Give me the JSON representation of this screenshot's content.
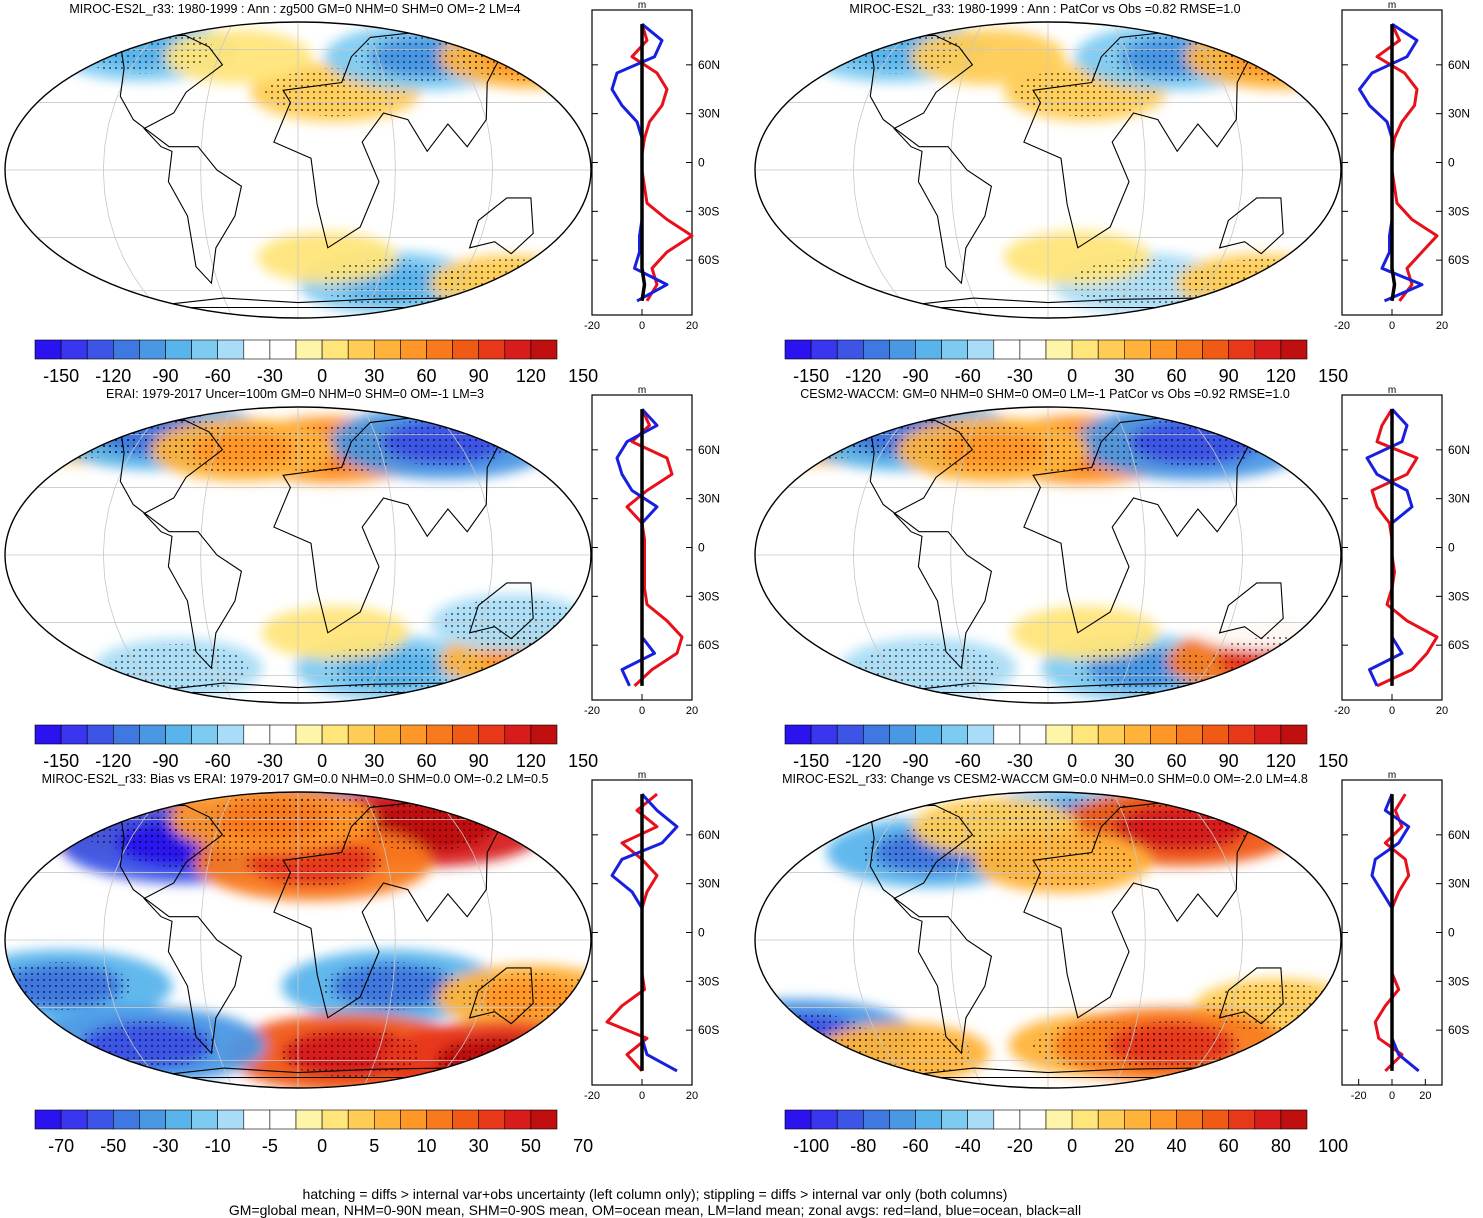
{
  "figure": {
    "caption_line1": "hatching = diffs > internal var+obs uncertainty (left column only); stippling = diffs > internal var only (both columns)",
    "caption_line2": "GM=global mean, NHM=0-90N mean, SHM=0-90S mean, OM=ocean mean, LM=land mean; zonal avgs: red=land, blue=ocean, black=all",
    "colors": {
      "land": "#e8101a",
      "ocean": "#1820e0",
      "all": "#000000",
      "grid": "#c8c8c8",
      "stipple": "#000000"
    },
    "zonal_unit": "m",
    "lat_ticks": [
      "60N",
      "30N",
      "0",
      "30S",
      "60S"
    ],
    "lat_tick_values": [
      60,
      30,
      0,
      -30,
      -60
    ]
  },
  "chart_data": [
    {
      "id": "p1",
      "type": "map",
      "title": "MIROC-ES2L_r33: 1980-1999 : Ann : zg500 GM=0 NHM=0 SHM=0 OM=-2 LM=4",
      "colorbar_labels": [
        "-150",
        "-120",
        "-90",
        "-60",
        "-30",
        "0",
        "30",
        "60",
        "90",
        "120",
        "150"
      ],
      "colorbar_colors": [
        "#2a13ee",
        "#3a36f0",
        "#3c55e6",
        "#3f78e0",
        "#4a97e4",
        "#5ab4ec",
        "#7ecbf2",
        "#a9dcf6",
        "#ffffff",
        "#ffffff",
        "#fff5a8",
        "#ffe57a",
        "#ffcc55",
        "#ffb33a",
        "#ff9628",
        "#f97a1c",
        "#f05a14",
        "#e8381a",
        "#d81c1c",
        "#c00f0f"
      ],
      "scale_max": 150,
      "anomalies": [
        {
          "lon": 25,
          "lat": 35,
          "value": 40
        },
        {
          "lon": 95,
          "lat": 55,
          "value": -60
        },
        {
          "lon": 175,
          "lat": 55,
          "value": 50
        },
        {
          "lon": -120,
          "lat": 60,
          "value": -50
        },
        {
          "lon": -45,
          "lat": 55,
          "value": 25
        },
        {
          "lon": 70,
          "lat": -55,
          "value": -50
        },
        {
          "lon": 160,
          "lat": -55,
          "value": 35
        },
        {
          "lon": -90,
          "lat": -50,
          "value": -30
        },
        {
          "lon": 20,
          "lat": -40,
          "value": 20
        }
      ],
      "zonal": {
        "xlim": [
          -20,
          20
        ],
        "xticks": [
          -20,
          0,
          20
        ],
        "lat": [
          -85,
          -75,
          -65,
          -55,
          -45,
          -35,
          -25,
          -15,
          -5,
          5,
          15,
          25,
          35,
          45,
          55,
          65,
          75,
          85
        ],
        "land": [
          2,
          6,
          4,
          10,
          20,
          10,
          2,
          1,
          0,
          0,
          1,
          3,
          8,
          10,
          6,
          -4,
          2,
          0
        ],
        "ocean": [
          -2,
          10,
          -3,
          -1,
          -1,
          0,
          0,
          0,
          0,
          0,
          0,
          -2,
          -8,
          -12,
          -10,
          5,
          8,
          0
        ],
        "all": [
          0,
          1,
          0,
          0,
          0,
          0,
          0,
          0,
          0,
          0,
          0,
          0,
          0,
          0,
          0,
          0,
          0,
          0
        ]
      }
    },
    {
      "id": "p2",
      "type": "map",
      "title": "MIROC-ES2L_r33: 1980-1999 : Ann : PatCor vs Obs =0.82 RMSE=1.0",
      "colorbar_labels": [
        "-150",
        "-120",
        "-90",
        "-60",
        "-30",
        "0",
        "30",
        "60",
        "90",
        "120",
        "150"
      ],
      "colorbar_colors": [
        "#2a13ee",
        "#3a36f0",
        "#3c55e6",
        "#3f78e0",
        "#4a97e4",
        "#5ab4ec",
        "#7ecbf2",
        "#a9dcf6",
        "#ffffff",
        "#ffffff",
        "#fff5a8",
        "#ffe57a",
        "#ffcc55",
        "#ffb33a",
        "#ff9628",
        "#f97a1c",
        "#f05a14",
        "#e8381a",
        "#d81c1c",
        "#c00f0f"
      ],
      "scale_max": 150,
      "anomalies": [
        {
          "lon": 25,
          "lat": 35,
          "value": 35
        },
        {
          "lon": 95,
          "lat": 55,
          "value": -60
        },
        {
          "lon": 175,
          "lat": 55,
          "value": 55
        },
        {
          "lon": -120,
          "lat": 60,
          "value": -55
        },
        {
          "lon": -45,
          "lat": 55,
          "value": 30
        },
        {
          "lon": 70,
          "lat": -55,
          "value": -45
        },
        {
          "lon": 160,
          "lat": -55,
          "value": 40
        },
        {
          "lon": -90,
          "lat": -50,
          "value": -30
        },
        {
          "lon": 20,
          "lat": -40,
          "value": 25
        }
      ],
      "zonal": {
        "xlim": [
          -20,
          20
        ],
        "xticks": [
          -20,
          0,
          20
        ],
        "lat": [
          -85,
          -75,
          -65,
          -55,
          -45,
          -35,
          -25,
          -15,
          -5,
          5,
          15,
          25,
          35,
          45,
          55,
          65,
          75,
          85
        ],
        "land": [
          3,
          8,
          6,
          12,
          18,
          8,
          2,
          1,
          0,
          0,
          1,
          4,
          9,
          10,
          5,
          -6,
          3,
          0
        ],
        "ocean": [
          -3,
          12,
          -4,
          -1,
          -1,
          0,
          0,
          0,
          0,
          0,
          0,
          -2,
          -9,
          -13,
          -8,
          6,
          10,
          0
        ],
        "all": [
          0,
          1,
          0,
          0,
          0,
          0,
          0,
          0,
          0,
          0,
          0,
          0,
          0,
          0,
          0,
          0,
          0,
          0
        ]
      }
    },
    {
      "id": "p3",
      "type": "map",
      "title": "ERAI: 1979-2017 Uncer=100m GM=0 NHM=0 SHM=0 OM=-1 LM=3",
      "colorbar_labels": [
        "-150",
        "-120",
        "-90",
        "-60",
        "-30",
        "0",
        "30",
        "60",
        "90",
        "120",
        "150"
      ],
      "colorbar_colors": [
        "#2a13ee",
        "#3a36f0",
        "#3c55e6",
        "#3f78e0",
        "#4a97e4",
        "#5ab4ec",
        "#7ecbf2",
        "#a9dcf6",
        "#ffffff",
        "#ffffff",
        "#fff5a8",
        "#ffe57a",
        "#ffcc55",
        "#ffb33a",
        "#ff9628",
        "#f97a1c",
        "#f05a14",
        "#e8381a",
        "#d81c1c",
        "#c00f0f"
      ],
      "scale_max": 150,
      "anomalies": [
        {
          "lon": 25,
          "lat": 50,
          "value": 60
        },
        {
          "lon": 110,
          "lat": 55,
          "value": -80
        },
        {
          "lon": -170,
          "lat": 60,
          "value": 40
        },
        {
          "lon": -110,
          "lat": 60,
          "value": -70
        },
        {
          "lon": -40,
          "lat": 50,
          "value": 50
        },
        {
          "lon": 70,
          "lat": -55,
          "value": -55
        },
        {
          "lon": 170,
          "lat": -50,
          "value": 50
        },
        {
          "lon": -90,
          "lat": -55,
          "value": -40
        },
        {
          "lon": 25,
          "lat": -35,
          "value": 25
        },
        {
          "lon": 140,
          "lat": -30,
          "value": -35
        }
      ],
      "zonal": {
        "xlim": [
          -20,
          20
        ],
        "xticks": [
          -20,
          0,
          20
        ],
        "lat": [
          -85,
          -75,
          -65,
          -55,
          -45,
          -35,
          -25,
          -15,
          -5,
          5,
          15,
          25,
          35,
          45,
          55,
          65,
          75,
          85
        ],
        "land": [
          -3,
          4,
          14,
          16,
          10,
          2,
          1,
          1,
          1,
          1,
          0,
          -6,
          2,
          12,
          10,
          -4,
          3,
          0
        ],
        "ocean": [
          -5,
          -8,
          5,
          0,
          0,
          0,
          0,
          0,
          0,
          0,
          0,
          6,
          -4,
          -8,
          -10,
          -6,
          6,
          0
        ],
        "all": [
          0,
          0,
          0,
          0,
          0,
          0,
          0,
          0,
          0,
          0,
          0,
          0,
          0,
          0,
          0,
          0,
          0,
          0
        ]
      }
    },
    {
      "id": "p4",
      "type": "map",
      "title": "CESM2-WACCM: GM=0 NHM=0 SHM=0 OM=0 LM=-1 PatCor vs Obs =0.92 RMSE=1.0",
      "colorbar_labels": [
        "-150",
        "-120",
        "-90",
        "-60",
        "-30",
        "0",
        "30",
        "60",
        "90",
        "120",
        "150"
      ],
      "colorbar_colors": [
        "#2a13ee",
        "#3a36f0",
        "#3c55e6",
        "#3f78e0",
        "#4a97e4",
        "#5ab4ec",
        "#7ecbf2",
        "#a9dcf6",
        "#ffffff",
        "#ffffff",
        "#fff5a8",
        "#ffe57a",
        "#ffcc55",
        "#ffb33a",
        "#ff9628",
        "#f97a1c",
        "#f05a14",
        "#e8381a",
        "#d81c1c",
        "#c00f0f"
      ],
      "scale_max": 150,
      "anomalies": [
        {
          "lon": 25,
          "lat": 50,
          "value": 65
        },
        {
          "lon": 110,
          "lat": 55,
          "value": -85
        },
        {
          "lon": -170,
          "lat": 60,
          "value": 45
        },
        {
          "lon": -110,
          "lat": 60,
          "value": -75
        },
        {
          "lon": -40,
          "lat": 50,
          "value": 55
        },
        {
          "lon": 70,
          "lat": -55,
          "value": -60
        },
        {
          "lon": 170,
          "lat": -50,
          "value": 80
        },
        {
          "lon": -90,
          "lat": -55,
          "value": -45
        },
        {
          "lon": 25,
          "lat": -35,
          "value": 25
        },
        {
          "lon": 140,
          "lat": -30,
          "value": -30
        }
      ],
      "zonal": {
        "xlim": [
          -20,
          20
        ],
        "xticks": [
          -20,
          0,
          20
        ],
        "lat": [
          -85,
          -75,
          -65,
          -55,
          -45,
          -35,
          -25,
          -15,
          -5,
          5,
          15,
          25,
          35,
          45,
          55,
          65,
          75,
          85
        ],
        "land": [
          -6,
          8,
          14,
          18,
          6,
          -2,
          0,
          1,
          0,
          0,
          -1,
          -6,
          -8,
          6,
          10,
          -6,
          -4,
          0
        ],
        "ocean": [
          -6,
          -9,
          4,
          0,
          0,
          0,
          0,
          0,
          0,
          0,
          0,
          8,
          6,
          -6,
          -10,
          4,
          6,
          0
        ],
        "all": [
          0,
          0,
          0,
          0,
          0,
          0,
          0,
          0,
          0,
          0,
          0,
          0,
          0,
          0,
          0,
          0,
          0,
          0
        ]
      }
    },
    {
      "id": "p5",
      "type": "map",
      "title": "MIROC-ES2L_r33: Bias vs ERAI: 1979-2017 GM=0.0 NHM=0.0 SHM=0.0 OM=-0.2 LM=0.5",
      "colorbar_labels": [
        "-70",
        "-50",
        "-30",
        "-10",
        "-5",
        "0",
        "5",
        "10",
        "30",
        "50",
        "70"
      ],
      "colorbar_colors": [
        "#2a13ee",
        "#3a36f0",
        "#3c55e6",
        "#3f78e0",
        "#4a97e4",
        "#5ab4ec",
        "#7ecbf2",
        "#a9dcf6",
        "#ffffff",
        "#ffffff",
        "#fff5a8",
        "#ffe57a",
        "#ffcc55",
        "#ffb33a",
        "#ff9628",
        "#f97a1c",
        "#f05a14",
        "#e8381a",
        "#d81c1c",
        "#c00f0f"
      ],
      "scale_max": 70,
      "anomalies": [
        {
          "lon": 20,
          "lat": 60,
          "value": -45
        },
        {
          "lon": 95,
          "lat": 55,
          "value": 60
        },
        {
          "lon": -140,
          "lat": 60,
          "value": 35
        },
        {
          "lon": -80,
          "lat": 45,
          "value": -55
        },
        {
          "lon": 10,
          "lat": 35,
          "value": 40
        },
        {
          "lon": -20,
          "lat": 60,
          "value": 30
        },
        {
          "lon": 60,
          "lat": -20,
          "value": -35
        },
        {
          "lon": 150,
          "lat": -25,
          "value": 25
        },
        {
          "lon": -150,
          "lat": -20,
          "value": -35
        },
        {
          "lon": 40,
          "lat": -55,
          "value": 45
        },
        {
          "lon": 160,
          "lat": -60,
          "value": 50
        },
        {
          "lon": -110,
          "lat": -50,
          "value": -40
        }
      ],
      "zonal": {
        "xlim": [
          -20,
          20
        ],
        "xticks": [
          -20,
          0,
          20
        ],
        "lat": [
          -85,
          -75,
          -65,
          -55,
          -45,
          -35,
          -25,
          -15,
          -5,
          5,
          15,
          25,
          35,
          45,
          55,
          65,
          75,
          85
        ],
        "land": [
          0,
          -6,
          2,
          -14,
          -8,
          1,
          0,
          0,
          0,
          0,
          0,
          2,
          6,
          0,
          -8,
          6,
          -2,
          6
        ],
        "ocean": [
          14,
          2,
          0,
          0,
          0,
          0,
          0,
          0,
          0,
          0,
          0,
          -4,
          -12,
          -8,
          8,
          14,
          6,
          0
        ],
        "all": [
          0,
          0,
          0,
          0,
          0,
          0,
          0,
          0,
          0,
          0,
          0,
          0,
          0,
          0,
          0,
          0,
          0,
          0
        ]
      }
    },
    {
      "id": "p6",
      "type": "map",
      "title": "MIROC-ES2L_r33: Change vs CESM2-WACCM GM=0.0 NHM=0.0 SHM=0.0 OM=-2.0 LM=4.8",
      "colorbar_labels": [
        "-100",
        "-80",
        "-60",
        "-40",
        "-20",
        "0",
        "20",
        "40",
        "60",
        "80",
        "100"
      ],
      "colorbar_colors": [
        "#2a13ee",
        "#3a36f0",
        "#3c55e6",
        "#3f78e0",
        "#4a97e4",
        "#5ab4ec",
        "#7ecbf2",
        "#a9dcf6",
        "#ffffff",
        "#ffffff",
        "#fff5a8",
        "#ffe57a",
        "#ffcc55",
        "#ffb33a",
        "#ff9628",
        "#f97a1c",
        "#f05a14",
        "#e8381a",
        "#d81c1c",
        "#c00f0f"
      ],
      "scale_max": 100,
      "anomalies": [
        {
          "lon": 20,
          "lat": 60,
          "value": -40
        },
        {
          "lon": 100,
          "lat": 55,
          "value": 60
        },
        {
          "lon": -80,
          "lat": 40,
          "value": -45
        },
        {
          "lon": -40,
          "lat": 55,
          "value": 25
        },
        {
          "lon": 10,
          "lat": 35,
          "value": 30
        },
        {
          "lon": 150,
          "lat": -30,
          "value": 25
        },
        {
          "lon": 40,
          "lat": -50,
          "value": 35
        },
        {
          "lon": 90,
          "lat": -50,
          "value": 55
        },
        {
          "lon": -175,
          "lat": -45,
          "value": -55
        },
        {
          "lon": -110,
          "lat": -55,
          "value": 30
        }
      ],
      "zonal": {
        "xlim": [
          -30,
          30
        ],
        "xticks": [
          -20,
          0,
          20
        ],
        "lat": [
          -85,
          -75,
          -65,
          -55,
          -45,
          -35,
          -25,
          -15,
          -5,
          5,
          15,
          25,
          35,
          45,
          55,
          65,
          75,
          85
        ],
        "land": [
          -4,
          6,
          -8,
          -10,
          -4,
          4,
          0,
          0,
          0,
          0,
          0,
          4,
          10,
          8,
          -4,
          6,
          2,
          8
        ],
        "ocean": [
          16,
          4,
          0,
          0,
          0,
          0,
          0,
          0,
          0,
          0,
          0,
          -6,
          -12,
          -10,
          4,
          10,
          -4,
          0
        ],
        "all": [
          0,
          0,
          0,
          0,
          0,
          0,
          0,
          0,
          0,
          0,
          0,
          0,
          0,
          0,
          0,
          0,
          0,
          0
        ]
      }
    }
  ]
}
